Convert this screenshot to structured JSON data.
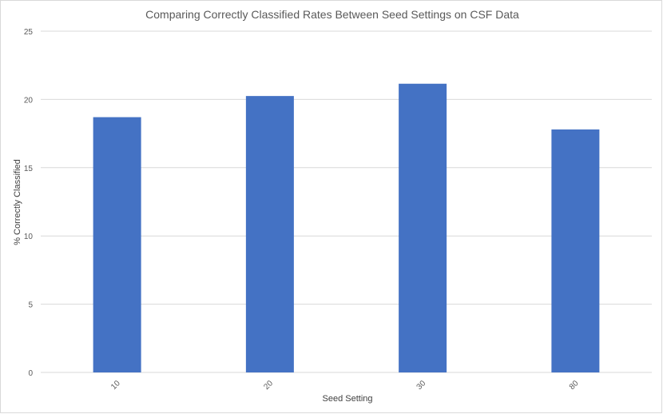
{
  "chart_data": {
    "type": "bar",
    "title": "Comparing Correctly Classified Rates Between Seed Settings on CSF Data",
    "xlabel": "Seed Setting",
    "ylabel": "% Correctly Classified",
    "categories": [
      "10",
      "20",
      "30",
      "80"
    ],
    "values": [
      18.7,
      20.25,
      21.15,
      17.8
    ],
    "ylim": [
      0,
      25
    ],
    "yticks": [
      0,
      5,
      10,
      15,
      20,
      25
    ],
    "grid": true,
    "bar_color": "#4472C4",
    "legend": "none"
  }
}
